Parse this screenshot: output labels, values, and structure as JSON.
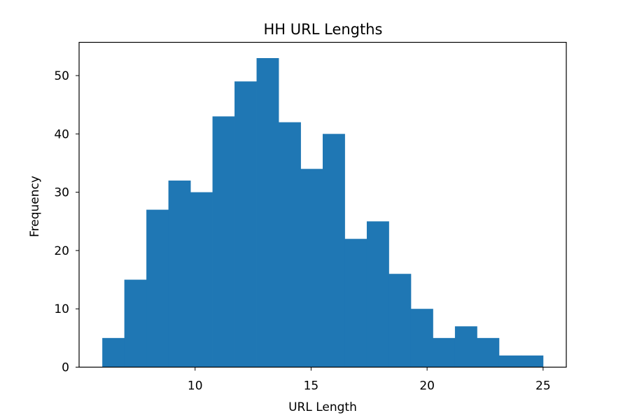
{
  "chart_data": {
    "type": "bar",
    "title": "HH URL Lengths",
    "xlabel": "URL Length",
    "ylabel": "Frequency",
    "xlim": [
      5,
      26
    ],
    "ylim": [
      0,
      55.7
    ],
    "x_ticks": [
      10,
      15,
      20,
      25
    ],
    "y_ticks": [
      0,
      10,
      20,
      30,
      40,
      50
    ],
    "bin_edges": [
      6,
      6.95,
      7.9,
      8.85,
      9.8,
      10.75,
      11.7,
      12.65,
      13.6,
      14.55,
      15.5,
      16.45,
      17.4,
      18.35,
      19.3,
      20.25,
      21.2,
      22.15,
      23.1,
      24.05,
      25
    ],
    "counts": [
      5,
      15,
      27,
      32,
      30,
      43,
      49,
      53,
      42,
      34,
      40,
      22,
      25,
      16,
      10,
      5,
      7,
      5,
      2,
      2
    ],
    "bar_color": "#1f77b4",
    "grid": false,
    "legend": false
  }
}
